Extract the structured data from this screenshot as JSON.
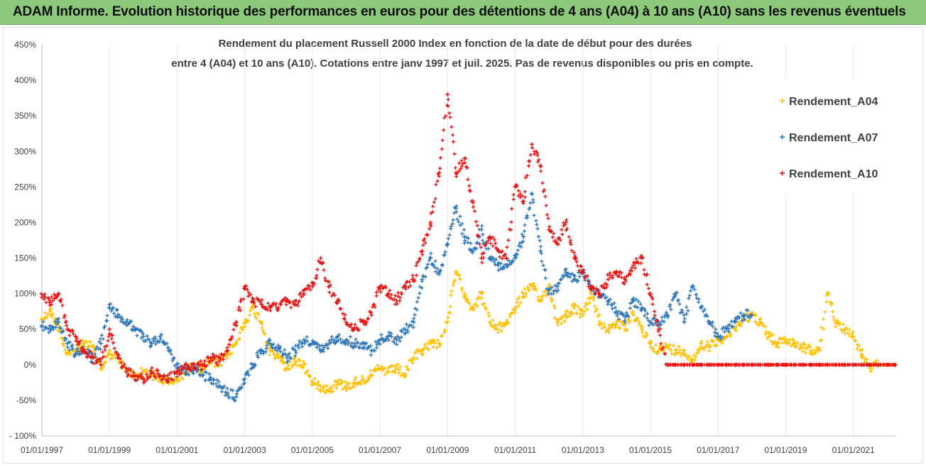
{
  "header": {
    "title": "ADAM Informe. Evolution historique des performances en euros pour des détentions de 4 ans (A04) à 10 ans (A10) sans les revenus éventuels"
  },
  "chart_data": {
    "type": "scatter",
    "title_lines": [
      "Rendement du placement Russell 2000 Index en fonction de la date de début pour des durées",
      "entre 4 (A04)  et 10 ans (A10). Cotations entre janv 1997 et juil. 2025. Pas de revenus disponibles ou pris en compte."
    ],
    "x_start": "1997-01-01",
    "x_end": "2022-04-01",
    "xtick_labels": [
      "01/01/1997",
      "01/01/1999",
      "01/01/2001",
      "01/01/2003",
      "01/01/2005",
      "01/01/2007",
      "01/01/2009",
      "01/01/2011",
      "01/01/2013",
      "01/01/2015",
      "01/01/2017",
      "01/01/2019",
      "01/01/2021"
    ],
    "ylim": [
      -100,
      450
    ],
    "yticks": [
      -100,
      -50,
      0,
      50,
      100,
      150,
      200,
      250,
      300,
      350,
      400,
      450
    ],
    "ytick_labels": [
      "- 100%",
      "-50%",
      "0%",
      "50%",
      "100%",
      "150%",
      "200%",
      "250%",
      "300%",
      "350%",
      "400%",
      "450%"
    ],
    "grid": "vertical",
    "legend_position": "top-right",
    "marker": "+",
    "series": [
      {
        "name": "Rendement_A04",
        "color": "#ffc000",
        "x": [
          "1997-01-01",
          "1997-04-01",
          "1997-07-01",
          "1997-10-01",
          "1998-01-01",
          "1998-04-01",
          "1998-07-01",
          "1998-10-01",
          "1999-01-01",
          "1999-04-01",
          "1999-07-01",
          "1999-10-01",
          "2000-01-01",
          "2000-04-01",
          "2000-07-01",
          "2000-10-01",
          "2001-01-01",
          "2001-04-01",
          "2001-07-01",
          "2001-10-01",
          "2002-01-01",
          "2002-04-01",
          "2002-07-01",
          "2002-10-01",
          "2003-01-01",
          "2003-04-01",
          "2003-07-01",
          "2003-10-01",
          "2004-01-01",
          "2004-04-01",
          "2004-07-01",
          "2004-10-01",
          "2005-01-01",
          "2005-04-01",
          "2005-07-01",
          "2005-10-01",
          "2006-01-01",
          "2006-04-01",
          "2006-07-01",
          "2006-10-01",
          "2007-01-01",
          "2007-04-01",
          "2007-07-01",
          "2007-10-01",
          "2008-01-01",
          "2008-04-01",
          "2008-07-01",
          "2008-10-01",
          "2009-01-01",
          "2009-04-01",
          "2009-07-01",
          "2009-10-01",
          "2010-01-01",
          "2010-04-01",
          "2010-07-01",
          "2010-10-01",
          "2011-01-01",
          "2011-04-01",
          "2011-07-01",
          "2011-10-01",
          "2012-01-01",
          "2012-04-01",
          "2012-07-01",
          "2012-10-01",
          "2013-01-01",
          "2013-04-01",
          "2013-07-01",
          "2013-10-01",
          "2014-01-01",
          "2014-04-01",
          "2014-07-01",
          "2014-10-01",
          "2015-01-01",
          "2015-04-01",
          "2015-07-01",
          "2015-10-01",
          "2016-01-01",
          "2016-04-01",
          "2016-07-01",
          "2016-10-01",
          "2017-01-01",
          "2017-04-01",
          "2017-07-01",
          "2017-10-01",
          "2018-01-01",
          "2018-04-01",
          "2018-07-01",
          "2018-10-01",
          "2019-01-01",
          "2019-04-01",
          "2019-07-01",
          "2019-10-01",
          "2020-01-01",
          "2020-04-01",
          "2020-07-01",
          "2020-10-01",
          "2021-01-01",
          "2021-04-01",
          "2021-07-01",
          "2021-10-01",
          "2022-01-01",
          "2022-04-01"
        ],
        "y": [
          65,
          75,
          55,
          15,
          20,
          30,
          25,
          -5,
          15,
          10,
          -10,
          -15,
          -10,
          -15,
          -20,
          -25,
          -20,
          -10,
          0,
          -5,
          5,
          0,
          15,
          30,
          60,
          80,
          60,
          20,
          10,
          -5,
          5,
          0,
          -25,
          -30,
          -35,
          -25,
          -30,
          -25,
          -20,
          -15,
          -5,
          -10,
          -5,
          -15,
          10,
          20,
          30,
          30,
          60,
          130,
          100,
          80,
          100,
          60,
          50,
          60,
          80,
          100,
          110,
          90,
          110,
          60,
          70,
          80,
          70,
          100,
          60,
          50,
          60,
          50,
          70,
          50,
          30,
          20,
          25,
          20,
          20,
          5,
          30,
          25,
          35,
          40,
          50,
          65,
          70,
          60,
          40,
          30,
          35,
          30,
          25,
          20,
          20,
          100,
          60,
          50,
          40,
          15,
          -5,
          0,
          0,
          0
        ]
      },
      {
        "name": "Rendement_A07",
        "color": "#2e75b6",
        "x": [
          "1997-01-01",
          "1997-04-01",
          "1997-07-01",
          "1997-10-01",
          "1998-01-01",
          "1998-04-01",
          "1998-07-01",
          "1998-10-01",
          "1999-01-01",
          "1999-04-01",
          "1999-07-01",
          "1999-10-01",
          "2000-01-01",
          "2000-04-01",
          "2000-07-01",
          "2000-10-01",
          "2001-01-01",
          "2001-04-01",
          "2001-07-01",
          "2001-10-01",
          "2002-01-01",
          "2002-04-01",
          "2002-07-01",
          "2002-10-01",
          "2003-01-01",
          "2003-04-01",
          "2003-07-01",
          "2003-10-01",
          "2004-01-01",
          "2004-04-01",
          "2004-07-01",
          "2004-10-01",
          "2005-01-01",
          "2005-04-01",
          "2005-07-01",
          "2005-10-01",
          "2006-01-01",
          "2006-04-01",
          "2006-07-01",
          "2006-10-01",
          "2007-01-01",
          "2007-04-01",
          "2007-07-01",
          "2007-10-01",
          "2008-01-01",
          "2008-04-01",
          "2008-07-01",
          "2008-10-01",
          "2009-01-01",
          "2009-04-01",
          "2009-07-01",
          "2009-10-01",
          "2010-01-01",
          "2010-04-01",
          "2010-07-01",
          "2010-10-01",
          "2011-01-01",
          "2011-04-01",
          "2011-07-01",
          "2011-10-01",
          "2012-01-01",
          "2012-04-01",
          "2012-07-01",
          "2012-10-01",
          "2013-01-01",
          "2013-04-01",
          "2013-07-01",
          "2013-10-01",
          "2014-01-01",
          "2014-04-01",
          "2014-07-01",
          "2014-10-01",
          "2015-01-01",
          "2015-04-01",
          "2015-07-01",
          "2015-10-01",
          "2016-01-01",
          "2016-04-01",
          "2016-07-01",
          "2016-10-01",
          "2017-01-01",
          "2017-04-01",
          "2017-07-01",
          "2017-10-01",
          "2018-01-01"
        ],
        "y": [
          55,
          50,
          60,
          30,
          15,
          20,
          10,
          30,
          80,
          70,
          60,
          50,
          40,
          30,
          40,
          20,
          -5,
          -10,
          -5,
          -15,
          -20,
          -30,
          -40,
          -45,
          -20,
          0,
          20,
          30,
          25,
          10,
          20,
          35,
          30,
          20,
          30,
          40,
          35,
          30,
          30,
          20,
          35,
          40,
          35,
          50,
          60,
          120,
          150,
          130,
          170,
          220,
          180,
          160,
          190,
          150,
          140,
          140,
          150,
          180,
          240,
          160,
          100,
          110,
          130,
          120,
          130,
          110,
          100,
          90,
          75,
          60,
          90,
          80,
          60,
          60,
          70,
          100,
          60,
          110,
          80,
          60,
          40,
          50,
          60,
          70,
          70
        ]
      },
      {
        "name": "Rendement_A10",
        "color": "#e81010",
        "x": [
          "1997-01-01",
          "1997-04-01",
          "1997-07-01",
          "1997-10-01",
          "1998-01-01",
          "1998-04-01",
          "1998-07-01",
          "1998-10-01",
          "1999-01-01",
          "1999-04-01",
          "1999-07-01",
          "1999-10-01",
          "2000-01-01",
          "2000-04-01",
          "2000-07-01",
          "2000-10-01",
          "2001-01-01",
          "2001-04-01",
          "2001-07-01",
          "2001-10-01",
          "2002-01-01",
          "2002-04-01",
          "2002-07-01",
          "2002-10-01",
          "2003-01-01",
          "2003-04-01",
          "2003-07-01",
          "2003-10-01",
          "2004-01-01",
          "2004-04-01",
          "2004-07-01",
          "2004-10-01",
          "2005-01-01",
          "2005-04-01",
          "2005-07-01",
          "2005-10-01",
          "2006-01-01",
          "2006-04-01",
          "2006-07-01",
          "2006-10-01",
          "2007-01-01",
          "2007-04-01",
          "2007-07-01",
          "2007-10-01",
          "2008-01-01",
          "2008-04-01",
          "2008-07-01",
          "2008-10-01",
          "2009-01-01",
          "2009-04-01",
          "2009-07-01",
          "2009-10-01",
          "2010-01-01",
          "2010-04-01",
          "2010-07-01",
          "2010-10-01",
          "2011-01-01",
          "2011-04-01",
          "2011-07-01",
          "2011-10-01",
          "2012-01-01",
          "2012-04-01",
          "2012-07-01",
          "2012-10-01",
          "2013-01-01",
          "2013-04-01",
          "2013-07-01",
          "2013-10-01",
          "2014-01-01",
          "2014-04-01",
          "2014-07-01",
          "2014-10-01",
          "2015-01-01",
          "2015-04-01",
          "2015-07-01",
          "2015-10-01",
          "2016-01-01",
          "2016-04-01",
          "2016-07-01",
          "2016-10-01",
          "2017-01-01",
          "2017-04-01",
          "2017-07-01",
          "2017-10-01",
          "2018-01-01",
          "2018-04-01",
          "2018-07-01",
          "2018-10-01",
          "2019-01-01",
          "2019-04-01",
          "2019-07-01",
          "2019-10-01",
          "2020-01-01",
          "2020-04-01",
          "2020-07-01",
          "2020-10-01",
          "2021-01-01",
          "2021-04-01",
          "2021-07-01",
          "2021-10-01",
          "2022-01-01",
          "2022-04-01"
        ],
        "y": [
          95,
          90,
          100,
          50,
          40,
          20,
          10,
          0,
          50,
          10,
          -10,
          -15,
          -20,
          -10,
          -15,
          -20,
          -10,
          0,
          -5,
          0,
          10,
          5,
          20,
          60,
          110,
          90,
          85,
          80,
          80,
          90,
          85,
          100,
          110,
          150,
          110,
          90,
          60,
          50,
          60,
          70,
          110,
          100,
          90,
          110,
          120,
          160,
          200,
          270,
          380,
          270,
          290,
          230,
          150,
          180,
          160,
          150,
          250,
          230,
          310,
          280,
          190,
          170,
          200,
          150,
          130,
          110,
          100,
          120,
          130,
          120,
          140,
          150,
          100,
          50,
          0,
          0,
          0,
          0,
          0,
          0,
          0,
          0,
          0,
          0,
          0,
          0,
          0,
          0,
          0,
          0,
          0,
          0,
          0,
          0,
          0,
          0,
          0,
          0,
          0,
          0,
          0,
          0
        ]
      }
    ]
  }
}
